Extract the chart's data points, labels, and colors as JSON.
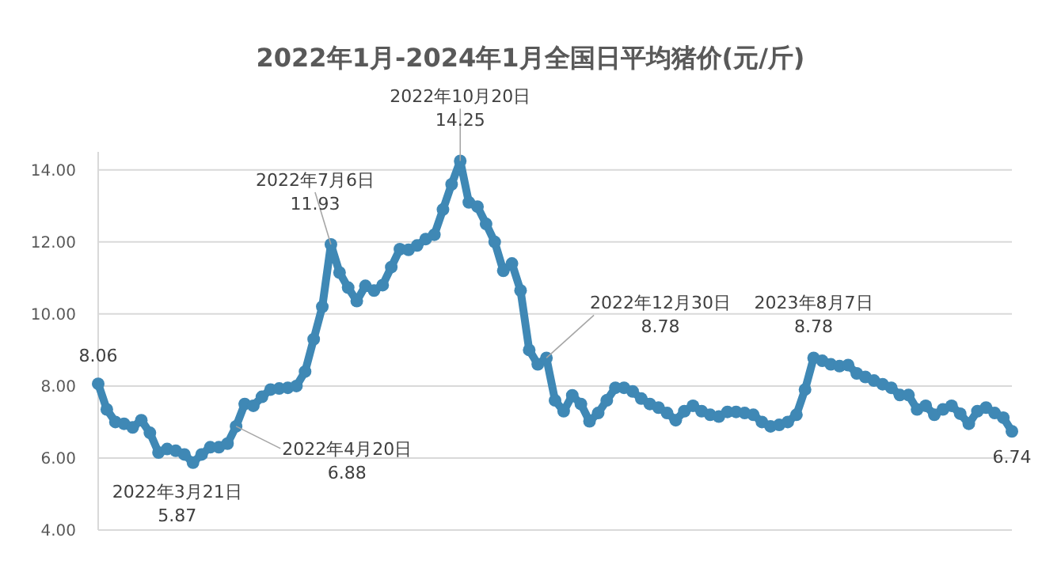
{
  "chart_data": {
    "type": "line",
    "title": "2022年1月-2024年1月全国日平均猪价(元/斤)",
    "marker": "circle",
    "grid": "y",
    "tick_labels": "y",
    "ylim": [
      4,
      14.5
    ],
    "yticks": [
      {
        "value": 4,
        "label": "4.00"
      },
      {
        "value": 6,
        "label": "6.00"
      },
      {
        "value": 8,
        "label": "8.00"
      },
      {
        "value": 10,
        "label": "10.00"
      },
      {
        "value": 12,
        "label": "12.00"
      },
      {
        "value": 14,
        "label": "14.00"
      }
    ],
    "annotations": [
      "8.06",
      "2022年3月21日\n5.87",
      "2022年4月20日\n6.88",
      "2022年7月6日\n11.93",
      "2022年10月20日\n14.25",
      "2022年12月30日\n8.78",
      "2023年8月7日\n8.78",
      "6.74"
    ],
    "categories": [
      null,
      null,
      null,
      null,
      null,
      null,
      null,
      null,
      null,
      null,
      null,
      null,
      null,
      null,
      null,
      null,
      null,
      null,
      null,
      null,
      null,
      null,
      null,
      null,
      null,
      null,
      null,
      null,
      null,
      null,
      null,
      null,
      null,
      null,
      null,
      null,
      null,
      null,
      null,
      null,
      null,
      null,
      null,
      null,
      null,
      null,
      null,
      null,
      null,
      null,
      null,
      null,
      null,
      null,
      null,
      null,
      null,
      null,
      null,
      null,
      null,
      null,
      null,
      null,
      null,
      null,
      null,
      null,
      null,
      null,
      null,
      null,
      null,
      null,
      null,
      null,
      null,
      null,
      null,
      null,
      null,
      null,
      null,
      null,
      null,
      null,
      null,
      null,
      null,
      null,
      null,
      null,
      null,
      null,
      null,
      null,
      null,
      null,
      null,
      null,
      null,
      null,
      null,
      null,
      null,
      null,
      null
    ],
    "series": [
      {
        "color": "#3f88b5",
        "values": [
          8.06,
          7.35,
          7.0,
          6.95,
          6.85,
          7.05,
          6.7,
          6.15,
          6.25,
          6.2,
          6.1,
          5.87,
          6.1,
          6.3,
          6.3,
          6.4,
          6.88,
          7.5,
          7.45,
          7.7,
          7.9,
          7.93,
          7.95,
          8.0,
          8.4,
          9.3,
          10.2,
          11.93,
          11.15,
          10.73,
          10.36,
          10.78,
          10.65,
          10.8,
          11.3,
          11.8,
          11.78,
          11.9,
          12.08,
          12.2,
          12.9,
          13.6,
          14.25,
          13.1,
          12.98,
          12.5,
          12.0,
          11.2,
          11.4,
          10.65,
          9.0,
          8.6,
          8.78,
          7.6,
          7.3,
          7.74,
          7.5,
          7.02,
          7.25,
          7.6,
          7.95,
          7.95,
          7.85,
          7.65,
          7.5,
          7.4,
          7.25,
          7.05,
          7.3,
          7.45,
          7.3,
          7.2,
          7.15,
          7.28,
          7.28,
          7.25,
          7.2,
          7.0,
          6.88,
          6.92,
          7.0,
          7.2,
          7.9,
          8.78,
          8.7,
          8.6,
          8.55,
          8.58,
          8.35,
          8.25,
          8.15,
          8.05,
          7.95,
          7.75,
          7.75,
          7.35,
          7.45,
          7.2,
          7.35,
          7.45,
          7.23,
          6.95,
          7.3,
          7.4,
          7.25,
          7.12,
          6.74
        ]
      }
    ]
  }
}
